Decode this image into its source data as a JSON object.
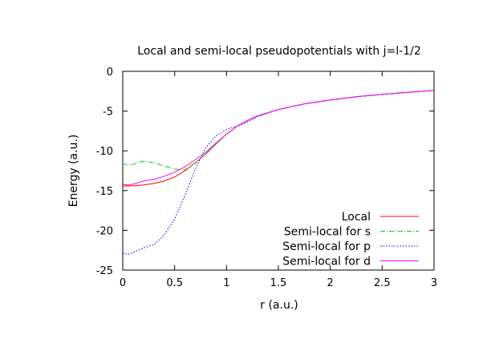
{
  "chart_data": {
    "type": "line",
    "title": "Local and semi-local pseudopotentials with j=l-1/2",
    "xlabel": "r (a.u.)",
    "ylabel": "Energy (a.u.)",
    "xlim": [
      0,
      3
    ],
    "ylim": [
      -25,
      0
    ],
    "xticks": [
      0,
      0.5,
      1,
      1.5,
      2,
      2.5,
      3
    ],
    "xtick_labels": [
      "0",
      "0.5",
      "1",
      "1.5",
      "2",
      "2.5",
      "3"
    ],
    "yticks": [
      0,
      -5,
      -10,
      -15,
      -20,
      -25
    ],
    "ytick_labels": [
      "0",
      "-5",
      "-10",
      "-15",
      "-20",
      "-25"
    ],
    "grid": false,
    "legend_position": "bottom-right",
    "series": [
      {
        "name": "Local",
        "color": "#ff0000",
        "dash": "solid",
        "x": [
          0,
          0.1,
          0.2,
          0.3,
          0.4,
          0.5,
          0.6,
          0.7,
          0.8,
          0.9,
          1.0,
          1.1,
          1.2,
          1.3,
          1.5,
          1.75,
          2.0,
          2.25,
          2.5,
          2.75,
          3.0
        ],
        "y": [
          -14.4,
          -14.4,
          -14.3,
          -14.1,
          -13.8,
          -13.3,
          -12.5,
          -11.5,
          -10.4,
          -9.1,
          -7.9,
          -6.9,
          -6.2,
          -5.6,
          -4.8,
          -4.1,
          -3.6,
          -3.2,
          -2.9,
          -2.65,
          -2.4
        ]
      },
      {
        "name": "Semi-local for s",
        "color": "#00cc00",
        "dash": "dashdot",
        "x": [
          0,
          0.05,
          0.1,
          0.2,
          0.3,
          0.4,
          0.5,
          0.6,
          0.7,
          0.8,
          0.9,
          1.0,
          1.1,
          1.2,
          1.3,
          1.5,
          1.75,
          2.0,
          2.25,
          2.5,
          2.75,
          3.0
        ],
        "y": [
          -11.6,
          -11.8,
          -11.7,
          -11.3,
          -11.5,
          -11.9,
          -12.3,
          -12.4,
          -11.5,
          -10.4,
          -9.1,
          -7.9,
          -6.9,
          -6.2,
          -5.6,
          -4.8,
          -4.1,
          -3.6,
          -3.2,
          -2.9,
          -2.65,
          -2.4
        ]
      },
      {
        "name": "Semi-local for p",
        "color": "#0000ff",
        "dash": "dotted",
        "x": [
          0,
          0.05,
          0.1,
          0.2,
          0.3,
          0.4,
          0.5,
          0.6,
          0.7,
          0.8,
          0.9,
          1.0,
          1.1,
          1.2,
          1.3,
          1.5,
          1.75,
          2.0,
          2.25,
          2.5,
          2.75,
          3.0
        ],
        "y": [
          -22.9,
          -23.0,
          -22.8,
          -22.2,
          -21.8,
          -20.6,
          -18.6,
          -15.6,
          -12.3,
          -9.6,
          -8.1,
          -7.3,
          -6.9,
          -6.4,
          -5.7,
          -4.8,
          -4.1,
          -3.6,
          -3.2,
          -2.9,
          -2.65,
          -2.4
        ]
      },
      {
        "name": "Semi-local for d",
        "color": "#ff00ff",
        "dash": "solid",
        "x": [
          0,
          0.05,
          0.1,
          0.2,
          0.3,
          0.4,
          0.5,
          0.6,
          0.7,
          0.8,
          0.9,
          1.0,
          1.1,
          1.2,
          1.3,
          1.5,
          1.75,
          2.0,
          2.25,
          2.5,
          2.75,
          3.0
        ],
        "y": [
          -14.2,
          -14.3,
          -14.2,
          -13.8,
          -13.6,
          -13.2,
          -12.7,
          -12.0,
          -11.1,
          -10.2,
          -9.0,
          -7.9,
          -6.9,
          -6.2,
          -5.6,
          -4.8,
          -4.1,
          -3.6,
          -3.2,
          -2.9,
          -2.65,
          -2.4
        ]
      }
    ]
  }
}
